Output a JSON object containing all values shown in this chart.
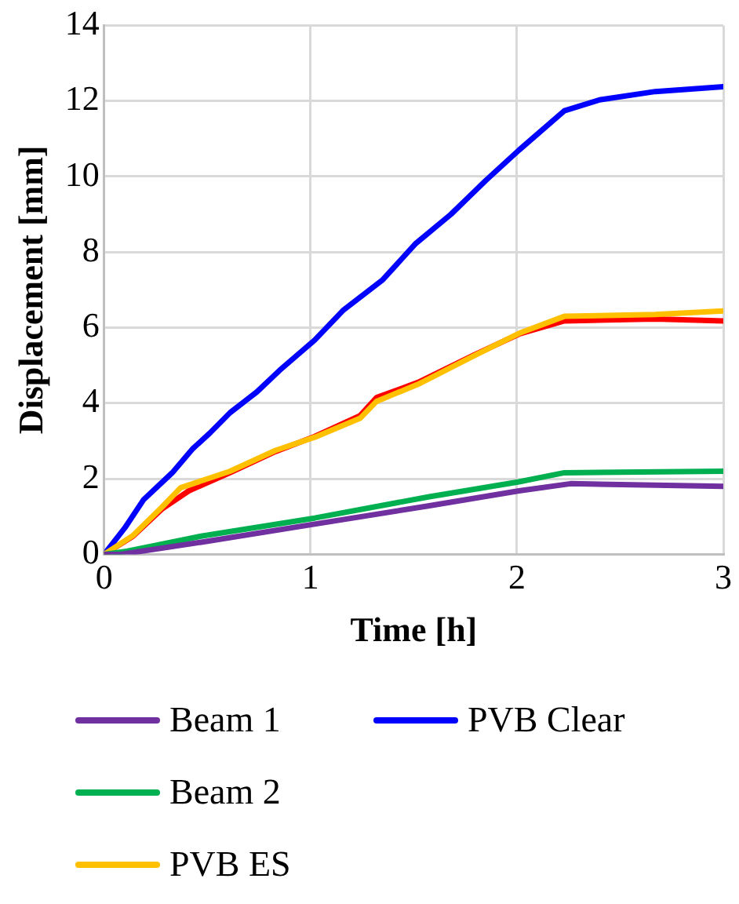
{
  "chart_data": {
    "type": "line",
    "xlabel": "Time [h]",
    "ylabel": "Displacement [mm]",
    "xlim": [
      0,
      3
    ],
    "xticks": [
      0,
      1,
      2,
      3
    ],
    "ylim": [
      0,
      14
    ],
    "yticks": [
      0,
      2,
      4,
      6,
      8,
      10,
      12,
      14
    ],
    "grid": true,
    "legend": "bottom",
    "marker": "none",
    "line_style": "solid",
    "series": [
      {
        "name": "Beam 1",
        "color": "#7030a0",
        "x": [
          0,
          0.08,
          0.47,
          1.02,
          1.57,
          2.01,
          2.26,
          3
        ],
        "values": [
          0,
          0,
          0.32,
          0.8,
          1.28,
          1.68,
          1.87,
          1.8
        ]
      },
      {
        "name": "Beam 2",
        "color": "#00b050",
        "x": [
          0,
          0.11,
          0.47,
          1.02,
          1.57,
          2.01,
          2.23,
          3
        ],
        "values": [
          0,
          0.08,
          0.48,
          0.96,
          1.52,
          1.92,
          2.16,
          2.2
        ]
      },
      {
        "name": "PVB ES",
        "color": "#ffc000",
        "x": [
          0,
          0.14,
          0.28,
          0.37,
          0.61,
          0.83,
          1.02,
          1.24,
          1.32,
          1.52,
          1.79,
          2.01,
          2.23,
          2.67,
          3
        ],
        "values": [
          0,
          0.5,
          1.25,
          1.76,
          2.2,
          2.75,
          3.1,
          3.6,
          4.05,
          4.5,
          5.25,
          5.85,
          6.3,
          6.35,
          6.44
        ]
      },
      {
        "name": "PVB Clear",
        "color": "#0000ff",
        "x": [
          0,
          0.1,
          0.19,
          0.33,
          0.43,
          0.51,
          0.61,
          0.74,
          0.85,
          1.02,
          1.16,
          1.35,
          1.51,
          1.68,
          1.85,
          2.01,
          2.23,
          2.4,
          2.67,
          3
        ],
        "values": [
          0,
          0.7,
          1.44,
          2.16,
          2.8,
          3.2,
          3.75,
          4.3,
          4.87,
          5.67,
          6.47,
          7.27,
          8.23,
          9,
          9.9,
          10.7,
          11.74,
          12.03,
          12.25,
          12.38
        ]
      },
      {
        "color": "#ff0000",
        "x": [
          0,
          0.14,
          0.28,
          0.41,
          0.61,
          0.83,
          1.02,
          1.24,
          1.32,
          1.52,
          1.79,
          2.01,
          2.23,
          2.67,
          3
        ],
        "values": [
          0,
          0.48,
          1.2,
          1.68,
          2.16,
          2.72,
          3.12,
          3.67,
          4.15,
          4.55,
          5.27,
          5.83,
          6.18,
          6.23,
          6.18
        ]
      }
    ]
  }
}
